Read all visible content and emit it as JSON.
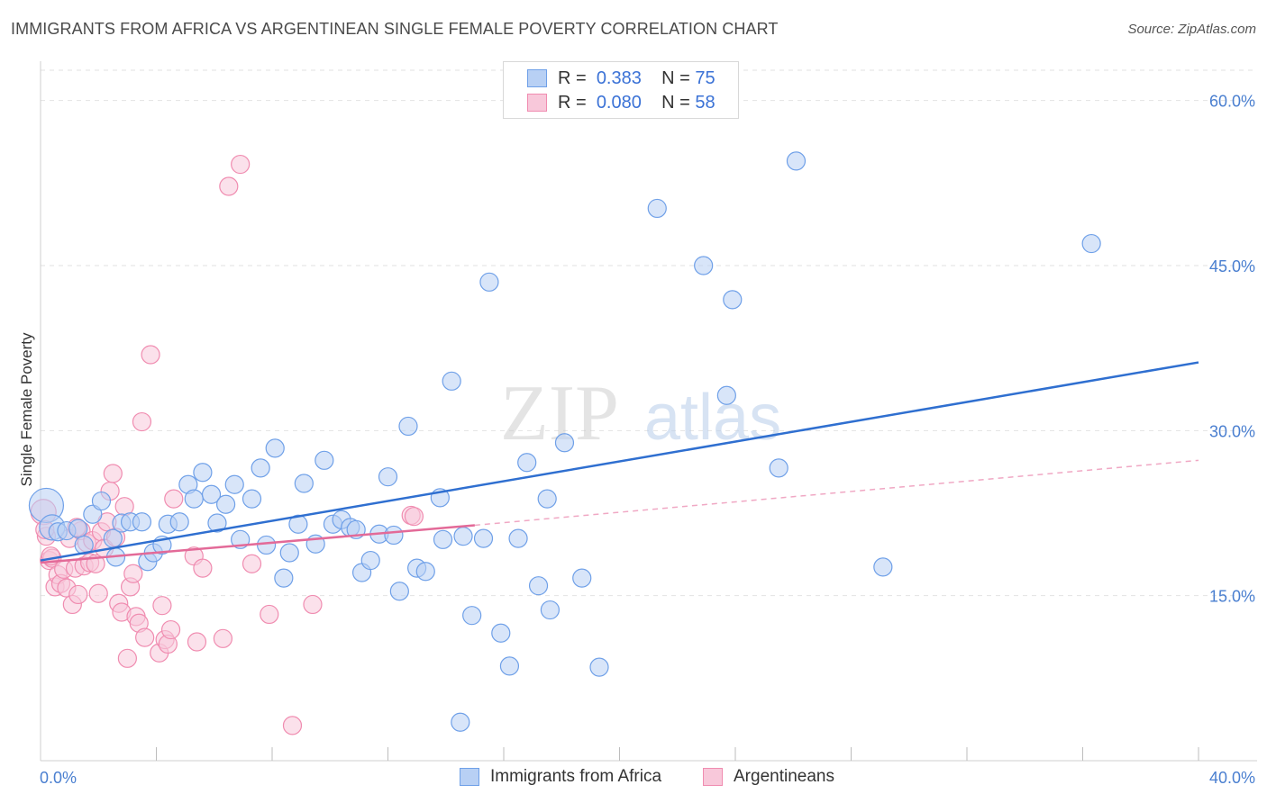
{
  "title": "IMMIGRANTS FROM AFRICA VS ARGENTINEAN SINGLE FEMALE POVERTY CORRELATION CHART",
  "source": "Source: ZipAtlas.com",
  "watermark": {
    "part1": "ZIP",
    "part2": "atlas"
  },
  "legend": {
    "rows": [
      {
        "r_label": "R =",
        "r_value": "0.383",
        "n_label": "N =",
        "n_value": "75",
        "color": "#6fa0e8",
        "fill": "#b8d0f4"
      },
      {
        "r_label": "R =",
        "r_value": "0.080",
        "n_label": "N =",
        "n_value": "58",
        "color": "#f08cb0",
        "fill": "#f8c8da"
      }
    ]
  },
  "bottom_legend": [
    {
      "label": "Immigrants from Africa",
      "color": "#6fa0e8",
      "fill": "#b8d0f4"
    },
    {
      "label": "Argentineans",
      "color": "#f08cb0",
      "fill": "#f8c8da"
    }
  ],
  "chart_data": {
    "type": "scatter",
    "ylabel": "Single Female Poverty",
    "xlabel": "",
    "xlim": [
      0,
      40
    ],
    "ylim": [
      0,
      63
    ],
    "x_tick_labels": [
      "0.0%",
      "40.0%"
    ],
    "y_ticks": [
      15,
      30,
      45,
      60
    ],
    "y_tick_labels": [
      "15.0%",
      "30.0%",
      "45.0%",
      "60.0%"
    ],
    "grid": true,
    "series": [
      {
        "name": "Immigrants from Africa",
        "color": "#6fa0e8",
        "fill": "#b8d0f4",
        "trend": {
          "x": [
            0,
            40
          ],
          "y": [
            18.2,
            36.2
          ],
          "color": "#2f6fd0",
          "style": "solid"
        },
        "points": [
          [
            0.2,
            23.2
          ],
          [
            0.4,
            21.2
          ],
          [
            0.6,
            20.8
          ],
          [
            0.9,
            20.9
          ],
          [
            1.3,
            21.1
          ],
          [
            1.5,
            19.6
          ],
          [
            1.8,
            22.4
          ],
          [
            2.1,
            23.6
          ],
          [
            2.5,
            20.2
          ],
          [
            2.6,
            18.5
          ],
          [
            2.8,
            21.6
          ],
          [
            3.1,
            21.7
          ],
          [
            3.5,
            21.7
          ],
          [
            3.7,
            18.1
          ],
          [
            3.9,
            18.9
          ],
          [
            4.2,
            19.6
          ],
          [
            4.4,
            21.5
          ],
          [
            4.8,
            21.7
          ],
          [
            5.1,
            25.1
          ],
          [
            5.3,
            23.8
          ],
          [
            5.6,
            26.2
          ],
          [
            5.9,
            24.2
          ],
          [
            6.1,
            21.6
          ],
          [
            6.4,
            23.3
          ],
          [
            6.7,
            25.1
          ],
          [
            6.9,
            20.1
          ],
          [
            7.3,
            23.8
          ],
          [
            7.6,
            26.6
          ],
          [
            7.8,
            19.6
          ],
          [
            8.1,
            28.4
          ],
          [
            8.4,
            16.6
          ],
          [
            8.6,
            18.9
          ],
          [
            8.9,
            21.5
          ],
          [
            9.1,
            25.2
          ],
          [
            9.5,
            19.7
          ],
          [
            9.8,
            27.3
          ],
          [
            10.1,
            21.5
          ],
          [
            10.4,
            21.9
          ],
          [
            10.7,
            21.2
          ],
          [
            10.9,
            21.0
          ],
          [
            11.1,
            17.1
          ],
          [
            11.4,
            18.2
          ],
          [
            11.7,
            20.6
          ],
          [
            12.0,
            25.8
          ],
          [
            12.2,
            20.5
          ],
          [
            12.4,
            15.4
          ],
          [
            12.7,
            30.4
          ],
          [
            13.0,
            17.5
          ],
          [
            13.3,
            17.2
          ],
          [
            13.8,
            23.9
          ],
          [
            13.9,
            20.1
          ],
          [
            14.2,
            34.5
          ],
          [
            14.5,
            3.5
          ],
          [
            14.6,
            20.4
          ],
          [
            14.9,
            13.2
          ],
          [
            15.3,
            20.2
          ],
          [
            15.5,
            43.5
          ],
          [
            15.9,
            11.6
          ],
          [
            16.2,
            8.6
          ],
          [
            16.5,
            20.2
          ],
          [
            16.8,
            27.1
          ],
          [
            17.2,
            15.9
          ],
          [
            17.5,
            23.8
          ],
          [
            17.6,
            13.7
          ],
          [
            18.1,
            28.9
          ],
          [
            18.7,
            16.6
          ],
          [
            19.3,
            8.5
          ],
          [
            21.3,
            50.2
          ],
          [
            22.9,
            45.0
          ],
          [
            23.7,
            33.2
          ],
          [
            23.9,
            41.9
          ],
          [
            25.5,
            26.6
          ],
          [
            26.1,
            54.5
          ],
          [
            29.1,
            17.6
          ],
          [
            36.3,
            47.0
          ]
        ]
      },
      {
        "name": "Argentineans",
        "color": "#f08cb0",
        "fill": "#f8c8da",
        "trend": {
          "x": [
            0,
            15
          ],
          "y": [
            18.0,
            21.4
          ],
          "color": "#e36a98",
          "style": "solid"
        },
        "trend_ext": {
          "x": [
            15,
            40
          ],
          "y": [
            21.4,
            27.3
          ],
          "color": "#f0a8c4",
          "style": "dashed"
        },
        "points": [
          [
            0.1,
            22.6
          ],
          [
            0.2,
            20.4
          ],
          [
            0.3,
            18.2
          ],
          [
            0.4,
            18.4
          ],
          [
            0.5,
            15.8
          ],
          [
            0.6,
            16.9
          ],
          [
            0.7,
            16.1
          ],
          [
            0.8,
            17.4
          ],
          [
            0.9,
            15.7
          ],
          [
            1.0,
            20.2
          ],
          [
            1.1,
            14.2
          ],
          [
            1.2,
            17.5
          ],
          [
            1.3,
            15.1
          ],
          [
            1.4,
            20.9
          ],
          [
            1.5,
            17.7
          ],
          [
            1.6,
            19.8
          ],
          [
            1.7,
            18.0
          ],
          [
            1.8,
            20.0
          ],
          [
            1.9,
            17.9
          ],
          [
            2.0,
            15.2
          ],
          [
            2.1,
            20.8
          ],
          [
            2.2,
            19.3
          ],
          [
            2.3,
            21.7
          ],
          [
            2.4,
            24.5
          ],
          [
            2.5,
            26.1
          ],
          [
            2.6,
            20.3
          ],
          [
            2.7,
            14.3
          ],
          [
            2.8,
            13.5
          ],
          [
            2.9,
            23.1
          ],
          [
            3.0,
            9.3
          ],
          [
            3.1,
            15.8
          ],
          [
            3.2,
            17.0
          ],
          [
            3.3,
            13.1
          ],
          [
            3.4,
            12.5
          ],
          [
            3.5,
            30.8
          ],
          [
            3.6,
            11.2
          ],
          [
            3.8,
            36.9
          ],
          [
            4.1,
            9.8
          ],
          [
            4.2,
            14.1
          ],
          [
            4.3,
            11.0
          ],
          [
            4.4,
            10.6
          ],
          [
            4.5,
            11.9
          ],
          [
            4.6,
            23.8
          ],
          [
            5.3,
            18.6
          ],
          [
            5.4,
            10.8
          ],
          [
            5.6,
            17.5
          ],
          [
            6.3,
            11.1
          ],
          [
            6.5,
            52.2
          ],
          [
            6.9,
            54.2
          ],
          [
            7.3,
            17.9
          ],
          [
            7.9,
            13.3
          ],
          [
            8.7,
            3.2
          ],
          [
            9.4,
            14.2
          ],
          [
            12.8,
            22.3
          ],
          [
            12.9,
            22.2
          ],
          [
            0.15,
            21.0
          ],
          [
            0.35,
            18.6
          ],
          [
            1.25,
            21.2
          ]
        ]
      }
    ]
  }
}
